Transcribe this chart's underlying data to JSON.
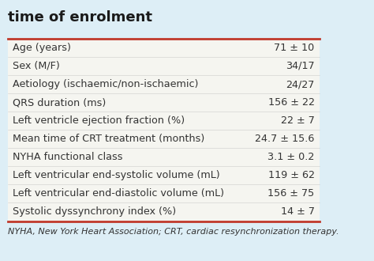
{
  "title": "time of enrolment",
  "rows": [
    [
      "Age (years)",
      "71 ± 10"
    ],
    [
      "Sex (M/F)",
      "34/17"
    ],
    [
      "Aetiology (ischaemic/non-ischaemic)",
      "24/27"
    ],
    [
      "QRS duration (ms)",
      "156 ± 22"
    ],
    [
      "Left ventricle ejection fraction (%)",
      "22 ± 7"
    ],
    [
      "Mean time of CRT treatment (months)",
      "24.7 ± 15.6"
    ],
    [
      "NYHA functional class",
      "3.1 ± 0.2"
    ],
    [
      "Left ventricular end-systolic volume (mL)",
      "119 ± 62"
    ],
    [
      "Left ventricular end-diastolic volume (mL)",
      "156 ± 75"
    ],
    [
      "Systolic dyssynchrony index (%)",
      "14 ± 7"
    ]
  ],
  "footnote": "NYHA, New York Heart Association; CRT, cardiac resynchronization therapy.",
  "background_color": "#ddeef6",
  "table_bg": "#f5f5f0",
  "title_color": "#1a1a1a",
  "line_color": "#c0392b",
  "sep_color": "#cccccc",
  "text_color": "#333333",
  "title_fontsize": 13,
  "row_fontsize": 9.2,
  "footnote_fontsize": 8.0
}
